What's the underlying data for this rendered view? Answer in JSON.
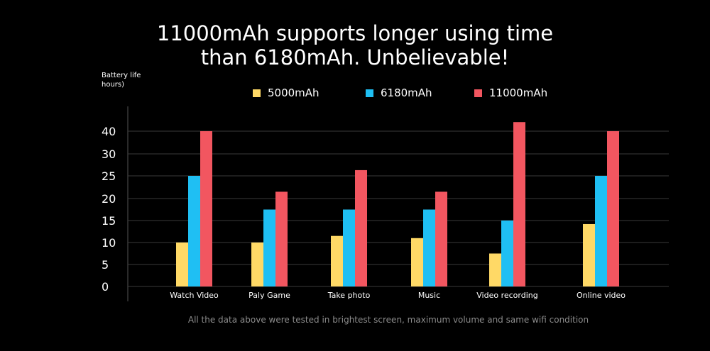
{
  "title_line1": "11000mAh supports longer using time",
  "title_line2": "than 6180mAh. Unbelievable!",
  "footnote": "All the data above were tested in brightest screen, maximum volume and same wifi condition",
  "chart_data": {
    "type": "bar",
    "ylabel_line1": "Battery life",
    "ylabel_line2": "hours)",
    "y_ticks": [
      0,
      5,
      10,
      15,
      20,
      25,
      30,
      40
    ],
    "grid": true,
    "legend_position": "top",
    "categories": [
      "Watch Video",
      "Paly Game",
      "Take photo",
      "Music",
      "Video recording",
      "Online video"
    ],
    "series": [
      {
        "name": "5000mAh",
        "color": "#ffd966",
        "values": [
          10,
          10,
          11.5,
          11,
          7.5,
          14.2
        ]
      },
      {
        "name": "6180mAh",
        "color": "#1fbff3",
        "values": [
          25,
          17.5,
          17.5,
          17.5,
          15,
          25
        ]
      },
      {
        "name": "11000mAh",
        "color": "#f25660",
        "values": [
          40,
          21.5,
          26.3,
          21.5,
          44,
          40
        ]
      }
    ]
  }
}
